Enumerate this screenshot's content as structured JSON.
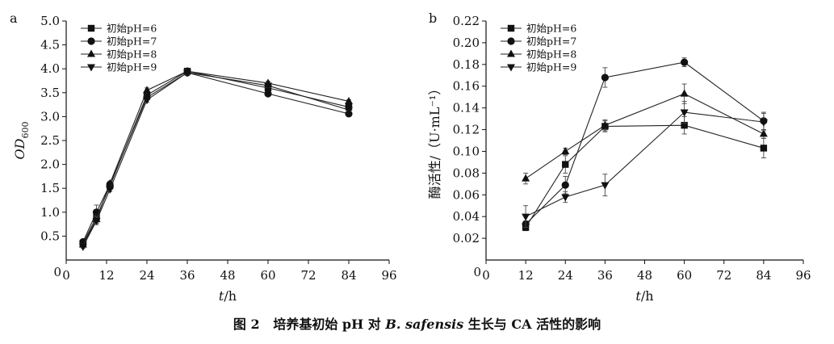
{
  "chart_data": [
    {
      "panel": "a",
      "type": "line",
      "ylabel_main": "OD",
      "ylabel_sub": "600",
      "xlabel_italic": "t",
      "xlabel_rest": "/h",
      "xlim": [
        0,
        96
      ],
      "ylim": [
        0,
        5.0
      ],
      "xticks": [
        0,
        12,
        24,
        36,
        48,
        60,
        72,
        84,
        96
      ],
      "yticks": [
        0,
        0.5,
        1.0,
        1.5,
        2.0,
        2.5,
        3.0,
        3.5,
        4.0,
        4.5,
        5.0
      ],
      "ytick_labels": [
        "0",
        "0.5",
        "1.0",
        "1.5",
        "2.0",
        "2.5",
        "3.0",
        "3.5",
        "4.0",
        "4.5",
        "5.0"
      ],
      "legend_position": "top-left",
      "x": [
        5,
        9,
        13,
        24,
        36,
        60,
        84
      ],
      "series": [
        {
          "name": "初始pH=6",
          "marker": "square",
          "values": [
            0.35,
            0.9,
            1.55,
            3.45,
            3.95,
            3.6,
            3.2
          ],
          "errors": [
            0.03,
            0.1,
            0.05,
            0.05,
            0.04,
            0.04,
            0.03
          ]
        },
        {
          "name": "初始pH=7",
          "marker": "circle",
          "values": [
            0.38,
            1.0,
            1.58,
            3.4,
            3.92,
            3.48,
            3.06
          ],
          "errors": [
            0.03,
            0.15,
            0.05,
            0.05,
            0.04,
            0.04,
            0.03
          ]
        },
        {
          "name": "初始pH=8",
          "marker": "triangle-up",
          "values": [
            0.32,
            0.85,
            1.6,
            3.55,
            3.95,
            3.7,
            3.32
          ],
          "errors": [
            0.03,
            0.08,
            0.05,
            0.05,
            0.04,
            0.04,
            0.03
          ]
        },
        {
          "name": "初始pH=9",
          "marker": "triangle-down",
          "values": [
            0.28,
            0.82,
            1.48,
            3.35,
            3.92,
            3.65,
            3.14
          ],
          "errors": [
            0.03,
            0.08,
            0.05,
            0.05,
            0.04,
            0.04,
            0.03
          ]
        }
      ]
    },
    {
      "panel": "b",
      "type": "line",
      "ylabel": "酶活性/（U·mL⁻¹）",
      "xlabel_italic": "t",
      "xlabel_rest": "/h",
      "xlim": [
        0,
        96
      ],
      "ylim": [
        0,
        0.22
      ],
      "xticks": [
        0,
        12,
        24,
        36,
        48,
        60,
        72,
        84,
        96
      ],
      "yticks": [
        0,
        0.02,
        0.04,
        0.06,
        0.08,
        0.1,
        0.12,
        0.14,
        0.16,
        0.18,
        0.2,
        0.22
      ],
      "ytick_labels": [
        "0",
        "0.02",
        "0.04",
        "0.06",
        "0.08",
        "0.10",
        "0.12",
        "0.14",
        "0.16",
        "0.18",
        "0.20",
        "0.22"
      ],
      "legend_position": "top-left",
      "x": [
        12,
        24,
        36,
        60,
        84
      ],
      "series": [
        {
          "name": "初始pH=6",
          "marker": "square",
          "values": [
            0.03,
            0.088,
            0.123,
            0.124,
            0.103
          ],
          "errors": [
            0.003,
            0.008,
            0.005,
            0.008,
            0.009
          ]
        },
        {
          "name": "初始pH=7",
          "marker": "circle",
          "values": [
            0.033,
            0.069,
            0.168,
            0.182,
            0.128
          ],
          "errors": [
            0.003,
            0.008,
            0.009,
            0.004,
            0.008
          ]
        },
        {
          "name": "初始pH=8",
          "marker": "triangle-up",
          "values": [
            0.075,
            0.1,
            0.124,
            0.153,
            0.116
          ],
          "errors": [
            0.005,
            0.003,
            0.005,
            0.009,
            0.004
          ]
        },
        {
          "name": "初始pH=9",
          "marker": "triangle-down",
          "values": [
            0.04,
            0.058,
            0.069,
            0.136,
            0.127
          ],
          "errors": [
            0.01,
            0.005,
            0.01,
            0.01,
            0.008
          ]
        }
      ]
    }
  ],
  "caption": {
    "figure_no": "图 2",
    "part1": "培养基初始 pH 对 ",
    "species": "B. safensis",
    "part2": " 生长与 CA 活性的影响"
  }
}
